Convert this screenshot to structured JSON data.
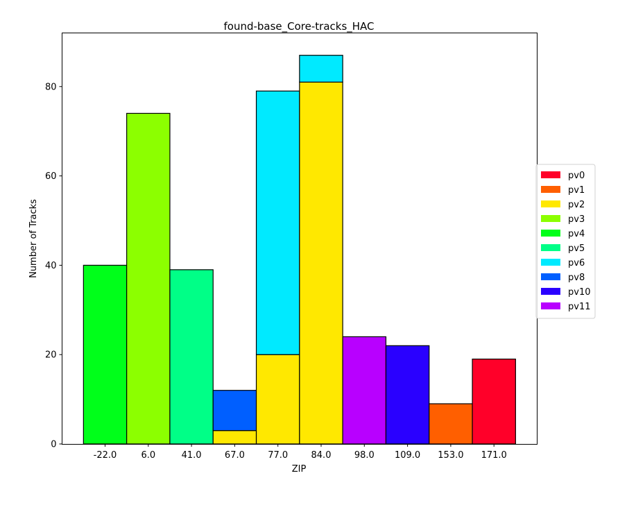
{
  "chart_data": {
    "type": "bar",
    "stacked": true,
    "title": "found-base_Core-tracks_HAC",
    "xlabel": "ZIP",
    "ylabel": "Number of Tracks",
    "categories": [
      "-22.0",
      "6.0",
      "41.0",
      "67.0",
      "77.0",
      "84.0",
      "98.0",
      "109.0",
      "153.0",
      "171.0"
    ],
    "ylim": [
      0,
      92
    ],
    "yticks": [
      0,
      20,
      40,
      60,
      80
    ],
    "grid": false,
    "legend_position": "right",
    "series": [
      {
        "name": "pv0",
        "color": "#ff0029",
        "values": [
          0,
          0,
          0,
          0,
          0,
          0,
          0,
          0,
          0,
          19
        ]
      },
      {
        "name": "pv1",
        "color": "#ff5f00",
        "values": [
          0,
          0,
          0,
          0,
          0,
          0,
          0,
          0,
          9,
          0
        ]
      },
      {
        "name": "pv2",
        "color": "#ffe800",
        "values": [
          0,
          0,
          0,
          3,
          20,
          81,
          0,
          0,
          0,
          0
        ]
      },
      {
        "name": "pv3",
        "color": "#8cff00",
        "values": [
          0,
          74,
          0,
          0,
          0,
          0,
          0,
          0,
          0,
          0
        ]
      },
      {
        "name": "pv4",
        "color": "#00ff1a",
        "values": [
          40,
          0,
          0,
          0,
          0,
          0,
          0,
          0,
          0,
          0
        ]
      },
      {
        "name": "pv5",
        "color": "#00ff87",
        "values": [
          0,
          0,
          39,
          0,
          0,
          0,
          0,
          0,
          0,
          0
        ]
      },
      {
        "name": "pv6",
        "color": "#00eaff",
        "values": [
          0,
          0,
          0,
          0,
          59,
          6,
          0,
          0,
          0,
          0
        ]
      },
      {
        "name": "pv8",
        "color": "#005fff",
        "values": [
          0,
          0,
          0,
          9,
          0,
          0,
          0,
          0,
          0,
          0
        ]
      },
      {
        "name": "pv10",
        "color": "#2a00ff",
        "values": [
          0,
          0,
          0,
          0,
          0,
          0,
          0,
          22,
          0,
          0
        ]
      },
      {
        "name": "pv11",
        "color": "#b800ff",
        "values": [
          0,
          0,
          0,
          0,
          0,
          0,
          24,
          0,
          0,
          0
        ]
      }
    ]
  }
}
